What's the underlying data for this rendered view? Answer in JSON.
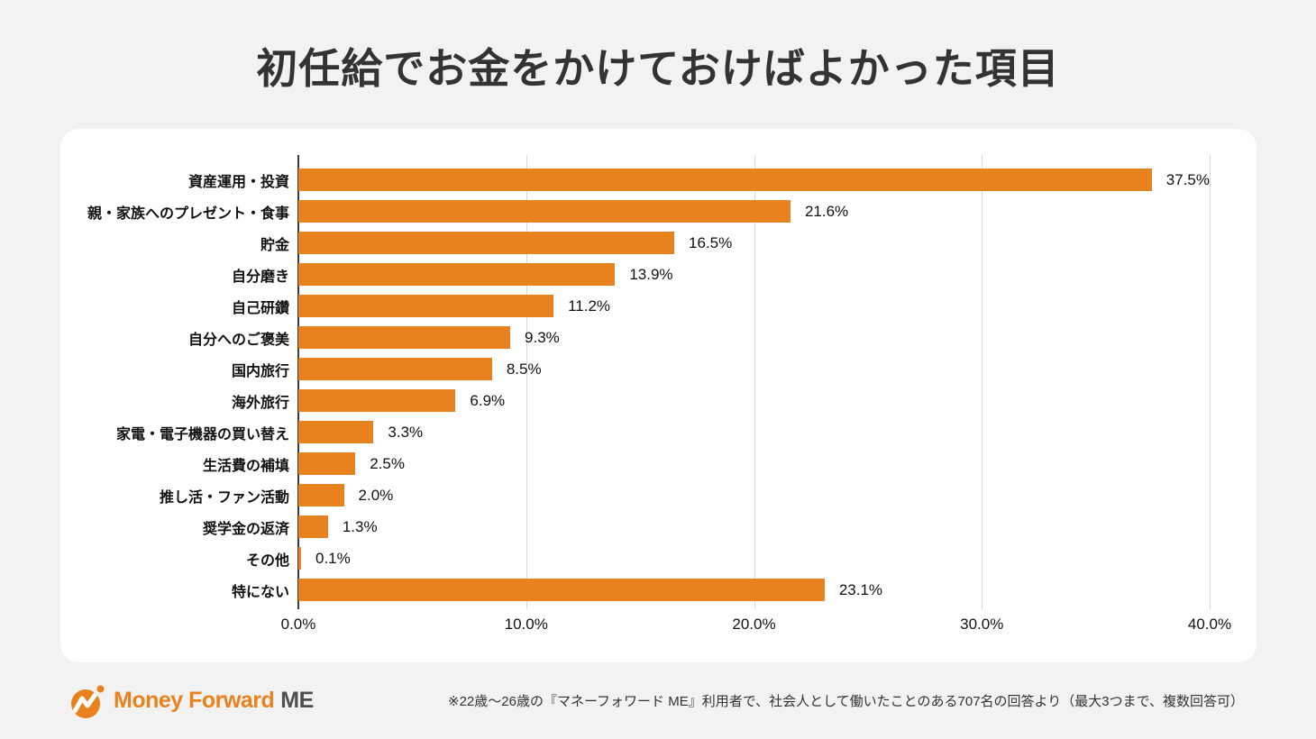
{
  "title": "初任給でお金をかけておけばよかった項目",
  "chart_data": {
    "type": "bar",
    "orientation": "horizontal",
    "title": "初任給でお金をかけておけばよかった項目",
    "categories": [
      "資産運用・投資",
      "親・家族へのプレゼント・食事",
      "貯金",
      "自分磨き",
      "自己研鑽",
      "自分へのご褒美",
      "国内旅行",
      "海外旅行",
      "家電・電子機器の買い替え",
      "生活費の補填",
      "推し活・ファン活動",
      "奨学金の返済",
      "その他",
      "特にない"
    ],
    "values": [
      37.5,
      21.6,
      16.5,
      13.9,
      11.2,
      9.3,
      8.5,
      6.9,
      3.3,
      2.5,
      2.0,
      1.3,
      0.1,
      23.1
    ],
    "value_labels": [
      "37.5%",
      "21.6%",
      "16.5%",
      "13.9%",
      "11.2%",
      "9.3%",
      "8.5%",
      "6.9%",
      "3.3%",
      "2.5%",
      "2.0%",
      "1.3%",
      "0.1%",
      "23.1%"
    ],
    "x_ticks": [
      "0.0%",
      "10.0%",
      "20.0%",
      "30.0%",
      "40.0%"
    ],
    "x_tick_values": [
      0,
      10,
      20,
      30,
      40
    ],
    "xlim": [
      0,
      40
    ],
    "grid": "vertical",
    "bar_color": "#E8821E"
  },
  "footer": {
    "logo_main": "Money Forward",
    "logo_suffix": "ME",
    "note": "※22歳〜26歳の『マネーフォワード ME』利用者で、社会人として働いたことのある707名の回答より（最大3つまで、複数回答可）"
  },
  "colors": {
    "background": "#F2F2F2",
    "card": "#FFFFFF",
    "bar": "#E8821E",
    "axis": "#3A3A3A",
    "gridline": "#D9D9D9",
    "title_text": "#333333",
    "logo_orange": "#E8821E",
    "logo_gray": "#4D4D4D"
  }
}
